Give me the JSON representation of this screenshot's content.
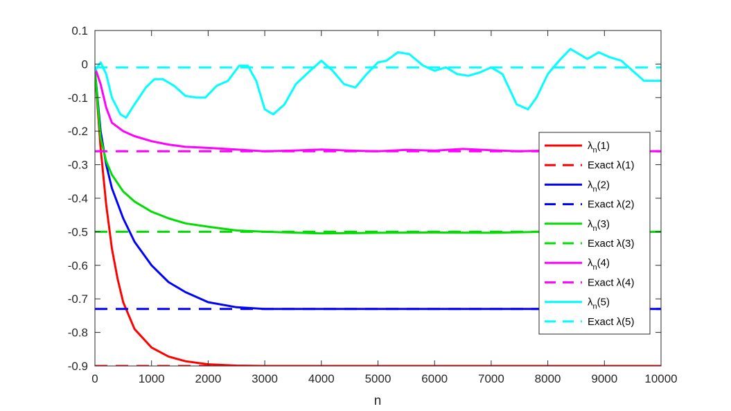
{
  "chart_data": {
    "type": "line",
    "xlabel": "n",
    "ylabel": "",
    "title": "",
    "xlim": [
      0,
      10000
    ],
    "ylim": [
      -0.9,
      0.1
    ],
    "xticks": [
      0,
      1000,
      2000,
      3000,
      4000,
      5000,
      6000,
      7000,
      8000,
      9000,
      10000
    ],
    "yticks": [
      0.1,
      0,
      -0.1,
      -0.2,
      -0.3,
      -0.4,
      -0.5,
      -0.6,
      -0.7,
      -0.8,
      -0.9
    ],
    "xtick_labels": [
      "0",
      "1000",
      "2000",
      "3000",
      "4000",
      "5000",
      "6000",
      "7000",
      "8000",
      "9000",
      "10000"
    ],
    "ytick_labels": [
      "0.1",
      "0",
      "-0.1",
      "-0.2",
      "-0.3",
      "-0.4",
      "-0.5",
      "-0.6",
      "-0.7",
      "-0.8",
      "-0.9"
    ],
    "grid": false,
    "legend_position": "right",
    "series": [
      {
        "name": "λn(1)",
        "color": "#ff0000",
        "style": "solid",
        "x": [
          0,
          100,
          200,
          300,
          400,
          500,
          700,
          1000,
          1300,
          1600,
          2000,
          2500,
          3000,
          4000,
          5000,
          6000,
          7000,
          8000,
          9000,
          10000
        ],
        "y": [
          -0.02,
          -0.25,
          -0.42,
          -0.55,
          -0.64,
          -0.71,
          -0.79,
          -0.845,
          -0.872,
          -0.886,
          -0.895,
          -0.899,
          -0.9,
          -0.9,
          -0.9,
          -0.9,
          -0.9,
          -0.9,
          -0.9,
          -0.9
        ]
      },
      {
        "name": "Exact λ(1)",
        "color": "#ff0000",
        "style": "dashed",
        "x": [
          0,
          10000
        ],
        "y": [
          -0.9,
          -0.9
        ]
      },
      {
        "name": "λn(2)",
        "color": "#0000ff",
        "style": "solid",
        "x": [
          0,
          100,
          200,
          300,
          500,
          700,
          1000,
          1300,
          1600,
          2000,
          2500,
          3000,
          4000,
          5000,
          6000,
          7000,
          8000,
          9000,
          10000
        ],
        "y": [
          -0.02,
          -0.2,
          -0.3,
          -0.37,
          -0.46,
          -0.53,
          -0.6,
          -0.65,
          -0.68,
          -0.71,
          -0.725,
          -0.73,
          -0.73,
          -0.73,
          -0.73,
          -0.73,
          -0.73,
          -0.73,
          -0.73
        ]
      },
      {
        "name": "Exact λ(2)",
        "color": "#0000ff",
        "style": "dashed",
        "x": [
          0,
          10000
        ],
        "y": [
          -0.73,
          -0.73
        ]
      },
      {
        "name": "λn(3)",
        "color": "#00dd00",
        "style": "solid",
        "x": [
          0,
          100,
          200,
          300,
          500,
          700,
          1000,
          1300,
          1600,
          2000,
          2500,
          3000,
          4000,
          5000,
          6000,
          7000,
          8000,
          9000,
          10000
        ],
        "y": [
          -0.02,
          -0.22,
          -0.29,
          -0.33,
          -0.38,
          -0.41,
          -0.44,
          -0.46,
          -0.475,
          -0.485,
          -0.496,
          -0.5,
          -0.505,
          -0.503,
          -0.502,
          -0.503,
          -0.5,
          -0.502,
          -0.5
        ]
      },
      {
        "name": "Exact λ(3)",
        "color": "#00dd00",
        "style": "dashed",
        "x": [
          0,
          10000
        ],
        "y": [
          -0.5,
          -0.5
        ]
      },
      {
        "name": "λn(4)",
        "color": "#ff00ff",
        "style": "solid",
        "x": [
          0,
          100,
          200,
          300,
          500,
          700,
          1000,
          1300,
          1600,
          2000,
          2500,
          3000,
          3500,
          4000,
          4500,
          5000,
          5500,
          6000,
          6500,
          7000,
          7500,
          8000,
          9000,
          10000
        ],
        "y": [
          -0.01,
          -0.06,
          -0.13,
          -0.175,
          -0.2,
          -0.215,
          -0.23,
          -0.24,
          -0.247,
          -0.25,
          -0.255,
          -0.26,
          -0.258,
          -0.255,
          -0.258,
          -0.26,
          -0.256,
          -0.258,
          -0.253,
          -0.257,
          -0.26,
          -0.258,
          -0.26,
          -0.26
        ]
      },
      {
        "name": "Exact λ(4)",
        "color": "#ff00ff",
        "style": "dashed",
        "x": [
          0,
          10000
        ],
        "y": [
          -0.26,
          -0.26
        ]
      },
      {
        "name": "λn(5)",
        "color": "#00ffff",
        "style": "solid",
        "x": [
          0,
          100,
          200,
          300,
          450,
          550,
          700,
          900,
          1050,
          1200,
          1400,
          1600,
          1800,
          1950,
          2150,
          2350,
          2550,
          2700,
          2850,
          3000,
          3150,
          3350,
          3550,
          3800,
          4000,
          4200,
          4400,
          4600,
          4800,
          5000,
          5150,
          5350,
          5550,
          5800,
          6000,
          6200,
          6400,
          6600,
          6800,
          7000,
          7200,
          7450,
          7650,
          7800,
          8000,
          8200,
          8400,
          8550,
          8700,
          8900,
          9100,
          9300,
          9500,
          9700,
          10000
        ],
        "y": [
          -0.02,
          0.005,
          -0.03,
          -0.1,
          -0.15,
          -0.16,
          -0.12,
          -0.07,
          -0.045,
          -0.045,
          -0.065,
          -0.095,
          -0.1,
          -0.1,
          -0.065,
          -0.05,
          -0.005,
          -0.005,
          -0.05,
          -0.135,
          -0.15,
          -0.12,
          -0.06,
          -0.02,
          0.01,
          -0.02,
          -0.06,
          -0.07,
          -0.03,
          0.005,
          0.01,
          0.035,
          0.03,
          -0.005,
          -0.02,
          -0.01,
          -0.03,
          -0.035,
          -0.025,
          -0.01,
          -0.03,
          -0.12,
          -0.135,
          -0.1,
          -0.03,
          0.01,
          0.045,
          0.03,
          0.015,
          0.035,
          0.02,
          0.01,
          -0.02,
          -0.05,
          -0.05
        ]
      },
      {
        "name": "Exact λ(5)",
        "color": "#00ffff",
        "style": "dashed",
        "x": [
          0,
          10000
        ],
        "y": [
          -0.01,
          -0.01
        ]
      }
    ],
    "legend": [
      {
        "base": "λ",
        "sub": "n",
        "suffix": "(1)",
        "series": 0
      },
      {
        "base": "Exact λ(1)",
        "sub": "",
        "suffix": "",
        "series": 1
      },
      {
        "base": "λ",
        "sub": "n",
        "suffix": "(2)",
        "series": 2
      },
      {
        "base": "Exact λ(2)",
        "sub": "",
        "suffix": "",
        "series": 3
      },
      {
        "base": "λ",
        "sub": "n",
        "suffix": "(3)",
        "series": 4
      },
      {
        "base": "Exact λ(3)",
        "sub": "",
        "suffix": "",
        "series": 5
      },
      {
        "base": "λ",
        "sub": "n",
        "suffix": "(4)",
        "series": 6
      },
      {
        "base": "Exact λ(4)",
        "sub": "",
        "suffix": "",
        "series": 7
      },
      {
        "base": "λ",
        "sub": "n",
        "suffix": "(5)",
        "series": 8
      },
      {
        "base": "Exact λ(5)",
        "sub": "",
        "suffix": "",
        "series": 9
      }
    ]
  }
}
